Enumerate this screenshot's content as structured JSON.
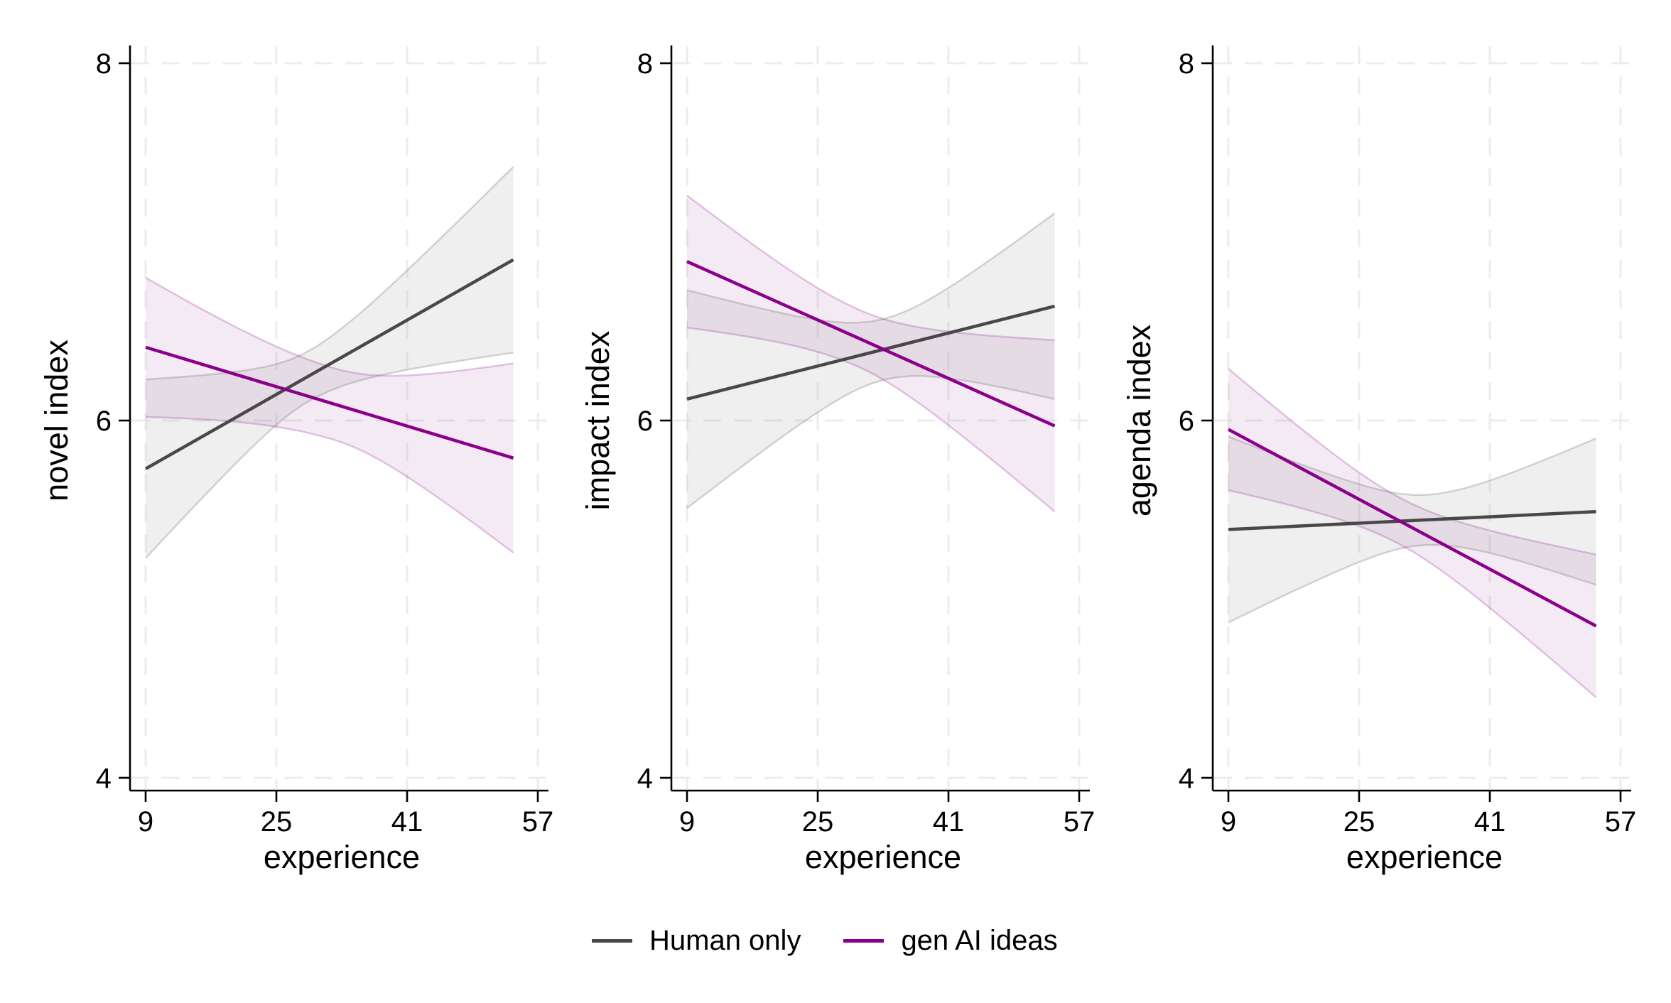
{
  "figure": {
    "background": "#ffffff"
  },
  "legend": {
    "items": [
      {
        "label": "Human only",
        "color": "#484848"
      },
      {
        "label": "gen AI ideas",
        "color": "#8B008B"
      }
    ]
  },
  "chart_data": {
    "type": "line",
    "layout": "three horizontal panels, shared y scale, dashed grid, legend bottom center",
    "x": {
      "label": "experience",
      "ticks": [
        9,
        25,
        41,
        57
      ],
      "range": [
        9,
        57
      ],
      "fit_range": [
        9,
        54
      ]
    },
    "y": {
      "ticks": [
        4,
        6,
        8
      ],
      "range": [
        4,
        8
      ]
    },
    "grid": {
      "color": "#ececec",
      "dash": "25 18",
      "on": true
    },
    "styles": {
      "human": {
        "color": "#484848",
        "fill": "rgba(130,130,130,0.13)",
        "edge": "rgba(120,120,120,0.30)"
      },
      "genai": {
        "color": "#8B008B",
        "fill": "rgba(145,65,150,0.11)",
        "edge": "rgba(139,0,139,0.22)"
      }
    },
    "panels": [
      {
        "ylabel": "novel index",
        "xlabel": "experience",
        "series": [
          {
            "key": "human",
            "name": "Human only",
            "x": [
              9,
              54
            ],
            "y": [
              5.73,
              6.9
            ],
            "ci_start": [
              5.23,
              6.23
            ],
            "ci_end": [
              6.38,
              7.42
            ],
            "ci": {
              "hw_start": 0.5,
              "hw_mid": 0.14,
              "hw_end": 0.52,
              "x_waist": 29
            }
          },
          {
            "key": "genai",
            "name": "gen AI ideas",
            "x": [
              9,
              54
            ],
            "y": [
              6.41,
              5.79
            ],
            "ci_start": [
              6.02,
              6.8
            ],
            "ci_end": [
              5.26,
              6.32
            ],
            "ci": {
              "hw_start": 0.39,
              "hw_mid": 0.2,
              "hw_end": 0.53,
              "x_waist": 32
            }
          }
        ]
      },
      {
        "ylabel": "impact index",
        "xlabel": "experience",
        "series": [
          {
            "key": "human",
            "name": "Human only",
            "x": [
              9,
              54
            ],
            "y": [
              6.12,
              6.64
            ],
            "ci_start": [
              5.51,
              6.73
            ],
            "ci_end": [
              6.12,
              7.16
            ],
            "ci": {
              "hw_start": 0.61,
              "hw_mid": 0.17,
              "hw_end": 0.52,
              "x_waist": 33
            }
          },
          {
            "key": "genai",
            "name": "gen AI ideas",
            "x": [
              9,
              54
            ],
            "y": [
              6.89,
              5.97
            ],
            "ci_start": [
              6.52,
              7.26
            ],
            "ci_end": [
              5.49,
              6.45
            ],
            "ci": {
              "hw_start": 0.37,
              "hw_mid": 0.16,
              "hw_end": 0.48,
              "x_waist": 30
            }
          }
        ]
      },
      {
        "ylabel": "agenda index",
        "xlabel": "experience",
        "series": [
          {
            "key": "human",
            "name": "Human only",
            "x": [
              9,
              54
            ],
            "y": [
              5.39,
              5.49
            ],
            "ci_start": [
              4.87,
              5.91
            ],
            "ci_end": [
              5.08,
              5.9
            ],
            "ci": {
              "hw_start": 0.52,
              "hw_mid": 0.14,
              "hw_end": 0.41,
              "x_waist": 33
            }
          },
          {
            "key": "genai",
            "name": "gen AI ideas",
            "x": [
              9,
              54
            ],
            "y": [
              5.95,
              4.85
            ],
            "ci_start": [
              5.61,
              6.29
            ],
            "ci_end": [
              4.45,
              5.25
            ],
            "ci": {
              "hw_start": 0.34,
              "hw_mid": 0.13,
              "hw_end": 0.4,
              "x_waist": 30
            }
          }
        ]
      }
    ]
  }
}
